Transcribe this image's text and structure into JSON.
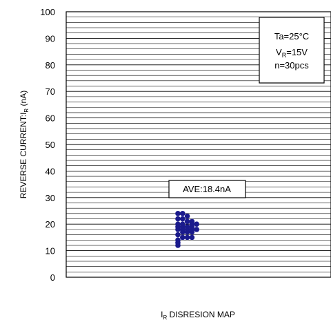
{
  "chart_data": {
    "type": "scatter",
    "title": "",
    "ylim": [
      0,
      100
    ],
    "y_major_ticks": [
      0,
      10,
      20,
      30,
      40,
      50,
      60,
      70,
      80,
      90,
      100
    ],
    "y_minor_step": 2,
    "grid": true,
    "xlabel": {
      "main": "I",
      "sub": "R",
      "rest": " DISRESION MAP"
    },
    "ylabel": {
      "main": "REVERSE CURRENT:I",
      "sub": "R",
      "rest": " (nA)"
    },
    "conditions_box": {
      "line1": "Ta=25°C",
      "line2": {
        "main": "V",
        "sub": "R",
        "rest": "=15V"
      },
      "line3": "n=30pcs"
    },
    "average_label": "AVE:18.4nA",
    "marker_color": "#1a1a8c",
    "series": [
      {
        "points": [
          {
            "col": 0,
            "y": 12
          },
          {
            "col": 0,
            "y": 14
          },
          {
            "col": 0,
            "y": 16
          },
          {
            "col": 0,
            "y": 18
          },
          {
            "col": 0,
            "y": 20
          },
          {
            "col": 0,
            "y": 22
          },
          {
            "col": 0,
            "y": 24
          },
          {
            "col": 1,
            "y": 15
          },
          {
            "col": 1,
            "y": 17
          },
          {
            "col": 1,
            "y": 18
          },
          {
            "col": 1,
            "y": 19
          },
          {
            "col": 1,
            "y": 20
          },
          {
            "col": 1,
            "y": 22
          },
          {
            "col": 1,
            "y": 24
          },
          {
            "col": 2,
            "y": 15
          },
          {
            "col": 2,
            "y": 17
          },
          {
            "col": 2,
            "y": 18
          },
          {
            "col": 2,
            "y": 19
          },
          {
            "col": 2,
            "y": 21
          },
          {
            "col": 2,
            "y": 23
          },
          {
            "col": 3,
            "y": 15
          },
          {
            "col": 3,
            "y": 17
          },
          {
            "col": 3,
            "y": 18
          },
          {
            "col": 3,
            "y": 19
          },
          {
            "col": 3,
            "y": 20
          },
          {
            "col": 3,
            "y": 21
          },
          {
            "col": 4,
            "y": 18
          },
          {
            "col": 4,
            "y": 20
          },
          {
            "col": 0,
            "y": 13
          },
          {
            "col": 0,
            "y": 19
          }
        ]
      }
    ]
  }
}
